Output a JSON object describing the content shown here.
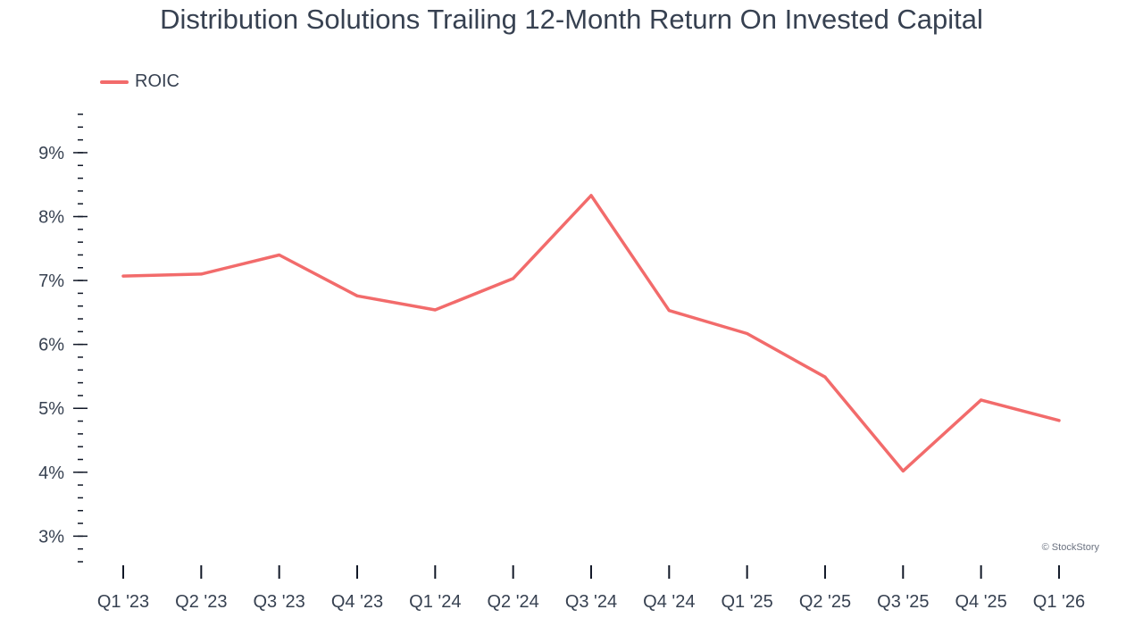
{
  "chart_data": {
    "type": "line",
    "title": "Distribution Solutions Trailing 12-Month Return On Invested Capital",
    "xlabel": "",
    "ylabel": "",
    "categories": [
      "Q1 '23",
      "Q2 '23",
      "Q3 '23",
      "Q4 '23",
      "Q1 '24",
      "Q2 '24",
      "Q3 '24",
      "Q4 '24",
      "Q1 '25",
      "Q2 '25",
      "Q3 '25",
      "Q4 '25",
      "Q1 '26"
    ],
    "series": [
      {
        "name": "ROIC",
        "color": "#f26b6b",
        "values": [
          7.07,
          7.1,
          7.4,
          6.76,
          6.54,
          7.03,
          8.33,
          6.53,
          6.17,
          5.49,
          4.02,
          5.13,
          4.81
        ]
      }
    ],
    "yticks": [
      3,
      4,
      5,
      6,
      7,
      8,
      9
    ],
    "ytick_format": "%",
    "ylim": [
      2.6,
      9.6
    ],
    "grid": false,
    "legend_position": "top-left",
    "watermark": "© StockStory"
  }
}
